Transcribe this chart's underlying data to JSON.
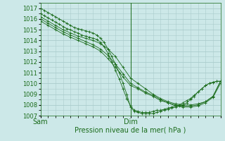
{
  "xlabel": "Pression niveau de la mer( hPa )",
  "ylim": [
    1007,
    1017.5
  ],
  "xlim": [
    0,
    48
  ],
  "yticks": [
    1007,
    1008,
    1009,
    1010,
    1011,
    1012,
    1013,
    1014,
    1015,
    1016,
    1017
  ],
  "xtick_positions": [
    0,
    24,
    48
  ],
  "xtick_labels": [
    "Sam",
    "Dim",
    ""
  ],
  "bg_color": "#cce8e8",
  "grid_color": "#aacccc",
  "line_color": "#1a6b1a",
  "vline_x": 24,
  "lines": [
    {
      "x": [
        0,
        1,
        2,
        3,
        4,
        5,
        6,
        7,
        8,
        9,
        10,
        11,
        12,
        13,
        14,
        15,
        16,
        17,
        18,
        19,
        20,
        21,
        22,
        23,
        24,
        25,
        26,
        27,
        28,
        29,
        30,
        31,
        32,
        33,
        34,
        35,
        36,
        37,
        38,
        39,
        40,
        41,
        42,
        43,
        44,
        45,
        46,
        47,
        48
      ],
      "y": [
        1017.0,
        1016.8,
        1016.6,
        1016.4,
        1016.2,
        1016.0,
        1015.8,
        1015.6,
        1015.4,
        1015.2,
        1015.1,
        1015.0,
        1014.9,
        1014.8,
        1014.7,
        1014.5,
        1014.2,
        1013.8,
        1013.2,
        1012.5,
        1011.8,
        1011.0,
        1010.0,
        1009.0,
        1007.8,
        1007.4,
        1007.3,
        1007.2,
        1007.2,
        1007.2,
        1007.2,
        1007.3,
        1007.4,
        1007.5,
        1007.6,
        1007.7,
        1007.8,
        1007.9,
        1008.0,
        1008.2,
        1008.5,
        1008.8,
        1009.2,
        1009.5,
        1009.8,
        1010.0,
        1010.1,
        1010.2,
        1010.2
      ]
    },
    {
      "x": [
        0,
        1,
        2,
        3,
        4,
        5,
        6,
        7,
        8,
        9,
        10,
        11,
        12,
        13,
        14,
        15,
        16,
        17,
        18,
        19,
        20,
        21,
        22,
        23,
        24,
        25,
        26,
        27,
        28,
        29,
        30,
        31,
        32,
        33,
        34,
        35,
        36,
        37,
        38,
        39,
        40,
        41,
        42,
        43,
        44,
        45,
        46,
        47,
        48
      ],
      "y": [
        1016.5,
        1016.3,
        1016.1,
        1015.9,
        1015.7,
        1015.5,
        1015.3,
        1015.1,
        1015.0,
        1014.8,
        1014.7,
        1014.5,
        1014.4,
        1014.3,
        1014.2,
        1014.1,
        1013.8,
        1013.4,
        1012.8,
        1012.0,
        1011.2,
        1010.4,
        1009.5,
        1008.6,
        1007.9,
        1007.5,
        1007.4,
        1007.3,
        1007.3,
        1007.3,
        1007.4,
        1007.5,
        1007.5,
        1007.6,
        1007.7,
        1007.8,
        1007.9,
        1008.0,
        1008.2,
        1008.4,
        1008.6,
        1008.9,
        1009.2,
        1009.5,
        1009.8,
        1010.0,
        1010.1,
        1010.2,
        1010.2
      ]
    },
    {
      "x": [
        0,
        2,
        4,
        6,
        8,
        10,
        12,
        14,
        16,
        18,
        20,
        22,
        24,
        26,
        28,
        30,
        32,
        34,
        36,
        38,
        40,
        42,
        44,
        46,
        48
      ],
      "y": [
        1016.2,
        1015.8,
        1015.4,
        1015.0,
        1014.7,
        1014.4,
        1014.2,
        1014.0,
        1013.7,
        1013.2,
        1012.5,
        1011.5,
        1010.5,
        1010.0,
        1009.5,
        1009.0,
        1008.6,
        1008.3,
        1008.1,
        1008.0,
        1008.0,
        1008.1,
        1008.3,
        1008.8,
        1010.2
      ]
    },
    {
      "x": [
        0,
        2,
        4,
        6,
        8,
        10,
        12,
        14,
        16,
        18,
        20,
        22,
        24,
        26,
        28,
        30,
        32,
        34,
        36,
        38,
        40,
        42,
        44,
        46,
        48
      ],
      "y": [
        1016.0,
        1015.6,
        1015.2,
        1014.8,
        1014.5,
        1014.2,
        1013.9,
        1013.6,
        1013.2,
        1012.6,
        1011.8,
        1010.9,
        1010.0,
        1009.6,
        1009.2,
        1008.9,
        1008.5,
        1008.2,
        1008.0,
        1007.9,
        1007.9,
        1008.0,
        1008.3,
        1008.8,
        1010.2
      ]
    },
    {
      "x": [
        0,
        2,
        4,
        6,
        8,
        10,
        12,
        14,
        16,
        18,
        20,
        22,
        24,
        26,
        28,
        30,
        32,
        34,
        36,
        38,
        40,
        42,
        44,
        46,
        48
      ],
      "y": [
        1015.8,
        1015.4,
        1015.0,
        1014.6,
        1014.3,
        1014.0,
        1013.7,
        1013.4,
        1013.0,
        1012.3,
        1011.5,
        1010.6,
        1009.8,
        1009.5,
        1009.1,
        1008.8,
        1008.4,
        1008.2,
        1007.9,
        1007.8,
        1007.8,
        1007.9,
        1008.2,
        1008.7,
        1010.0
      ]
    }
  ]
}
